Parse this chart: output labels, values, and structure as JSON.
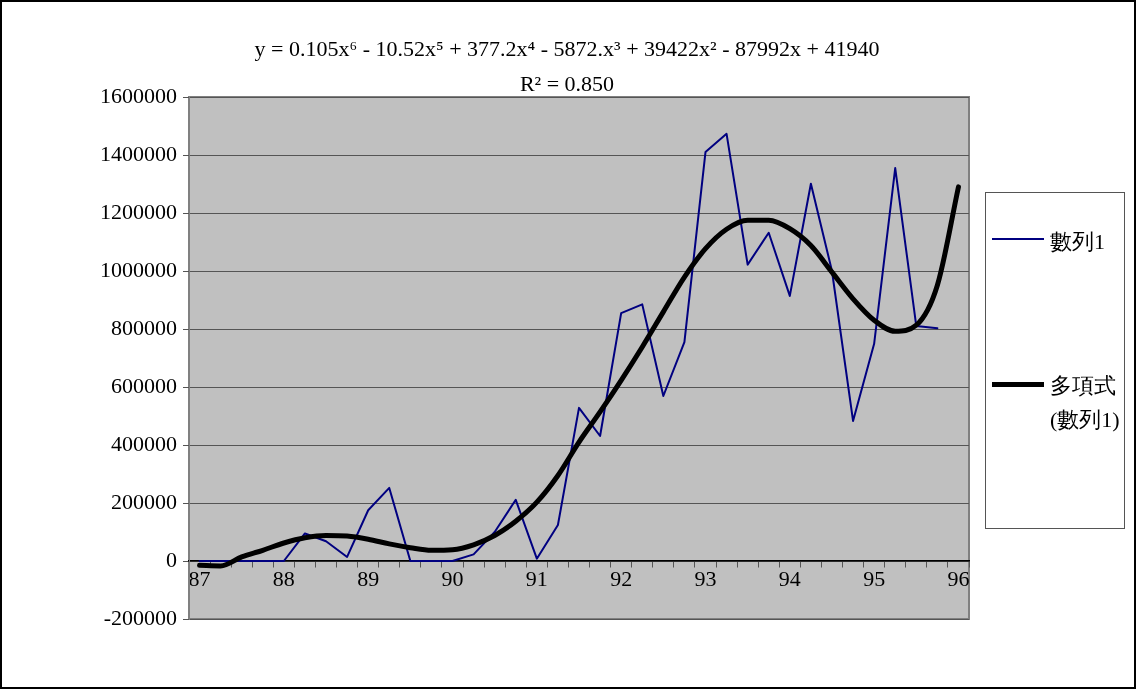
{
  "chart_data": {
    "type": "line",
    "categories": [
      "87",
      null,
      null,
      null,
      "88",
      null,
      null,
      null,
      "89",
      null,
      null,
      null,
      "90",
      null,
      null,
      null,
      "91",
      null,
      null,
      null,
      "92",
      null,
      null,
      null,
      "93",
      null,
      null,
      null,
      "94",
      null,
      null,
      null,
      "95",
      null,
      null,
      null,
      "96"
    ],
    "series": [
      {
        "name": "數列1",
        "color": "#000080",
        "values": [
          0,
          0,
          0,
          0,
          0,
          95000,
          68000,
          14000,
          175000,
          252000,
          0,
          0,
          0,
          23000,
          100000,
          211000,
          8000,
          124000,
          528000,
          431000,
          855000,
          885000,
          569000,
          755000,
          1410000,
          1473000,
          1022000,
          1132000,
          914000,
          1301000,
          1000000,
          483000,
          749000,
          1355000,
          810000,
          803000,
          null
        ]
      },
      {
        "name": "多項式(數列1)",
        "color": "#000000",
        "values": [
          -15000,
          -17000,
          14000,
          37000,
          62000,
          80000,
          88000,
          86000,
          75000,
          59000,
          46000,
          37000,
          39000,
          56000,
          88000,
          137000,
          203000,
          295000,
          410000,
          514000,
          623000,
          738000,
          859000,
          979000,
          1077000,
          1144000,
          1175000,
          1175000,
          1146000,
          1088000,
          996000,
          904000,
          830000,
          792000,
          813000,
          951000,
          1290000
        ]
      }
    ],
    "ylim": [
      -200000,
      1600000
    ],
    "yticks": [
      -200000,
      0,
      200000,
      400000,
      600000,
      800000,
      1000000,
      1200000,
      1400000,
      1600000
    ],
    "grid": "y",
    "legend": "right",
    "annotations": [
      "y = 0.105x⁶ - 10.52x⁵ + 377.2x⁴ - 5872.x³ + 39422x² - 87992x + 41940",
      "R² = 0.850"
    ]
  }
}
